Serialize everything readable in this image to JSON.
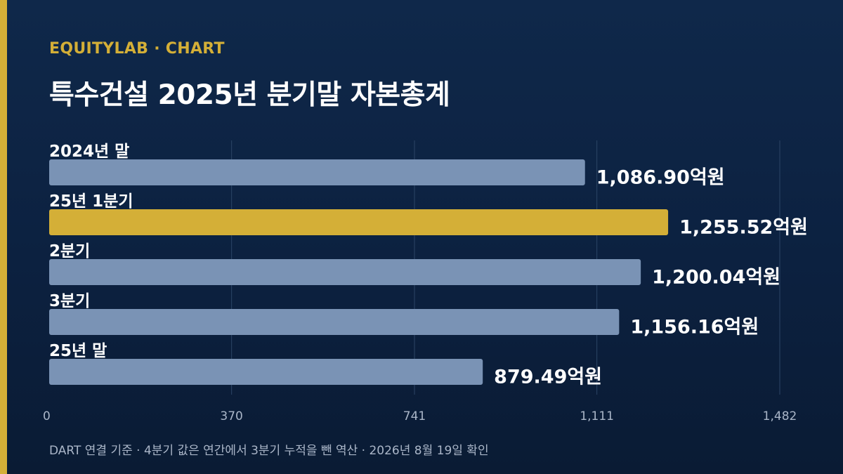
{
  "header": {
    "brand": "EQUITYLAB · CHART",
    "title": "특수건설 2025년 분기말 자본총계"
  },
  "footnote": "DART 연결 기준 · 4분기 값은 연간에서 3분기 누적을 뺀 역산 · 2026년 8월 19일 확인",
  "colors": {
    "accent": "#d4af37",
    "bar": "#7a93b5",
    "highlight": "#d4af37",
    "grid": "#2c4566"
  },
  "chart_data": {
    "type": "bar",
    "orientation": "horizontal",
    "title": "특수건설 2025년 분기말 자본총계",
    "categories": [
      "2024년 말",
      "25년 1분기",
      "2분기",
      "3분기",
      "25년 말"
    ],
    "values": [
      1086.9,
      1255.52,
      1200.04,
      1156.16,
      879.49
    ],
    "value_labels": [
      "1,086.90억원",
      "1,255.52억원",
      "1,200.04억원",
      "1,156.16억원",
      "879.49억원"
    ],
    "highlight_index": 1,
    "xlim": [
      0,
      1482
    ],
    "x_ticks": [
      0,
      370,
      741,
      1111,
      1482
    ],
    "x_tick_labels": [
      "0",
      "370",
      "741",
      "1,111",
      "1,482"
    ],
    "grid": true
  }
}
